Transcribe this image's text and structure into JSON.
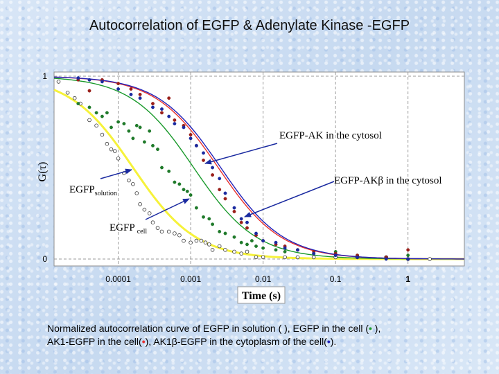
{
  "title": "Autocorrelation of EGFP & Adenylate Kinase -EGFP",
  "chart_data": {
    "type": "scatter",
    "title": "Autocorrelation of EGFP & Adenylate Kinase -EGFP",
    "xlabel": "Time (s)",
    "ylabel": "G(τ)",
    "x_scale": "log",
    "xlim": [
      1.3e-05,
      6
    ],
    "ylim": [
      0,
      1
    ],
    "x_ticks": [
      {
        "value": 0.0001,
        "label": "0.0001"
      },
      {
        "value": 0.001,
        "label": "0.001"
      },
      {
        "value": 0.01,
        "label": "0.01"
      },
      {
        "value": 0.1,
        "label": "0.1"
      },
      {
        "value": 1,
        "label": "1"
      }
    ],
    "y_ticks": [
      {
        "value": 0,
        "label": "0"
      },
      {
        "value": 1,
        "label": "1"
      }
    ],
    "grid": "vertical-dashed",
    "series": [
      {
        "name": "EGFP solution",
        "color": "#f6f23a",
        "marker_color": "#ffffff",
        "x": [
          1.5e-05,
          2e-05,
          2.5e-05,
          3e-05,
          4e-05,
          5e-05,
          6e-05,
          7e-05,
          8e-05,
          9e-05,
          0.0001,
          0.00012,
          0.00014,
          0.00016,
          0.00018,
          0.0002,
          0.00023,
          0.00027,
          0.0003,
          0.00035,
          0.0004,
          0.0005,
          0.0006,
          0.0007,
          0.0008,
          0.001,
          0.0012,
          0.0014,
          0.0016,
          0.0018,
          0.002,
          0.0025,
          0.003,
          0.004,
          0.005,
          0.006,
          0.008,
          0.01,
          0.02,
          0.03,
          0.05,
          0.1,
          0.2,
          0.5,
          1,
          2
        ],
        "y": [
          0.97,
          0.91,
          0.88,
          0.85,
          0.76,
          0.73,
          0.68,
          0.63,
          0.6,
          0.59,
          0.55,
          0.47,
          0.43,
          0.41,
          0.36,
          0.3,
          0.27,
          0.25,
          0.2,
          0.17,
          0.15,
          0.15,
          0.14,
          0.13,
          0.1,
          0.09,
          0.1,
          0.1,
          0.09,
          0.08,
          0.05,
          0.07,
          0.05,
          0.04,
          0.03,
          0.04,
          0.01,
          0.01,
          0.01,
          0.01,
          0.01,
          0.01,
          0.01,
          0.01,
          0.0,
          0.0
        ]
      },
      {
        "name": "EGFP cell",
        "color": "#1a9a2c",
        "marker_color": "#1f7a2a",
        "x": [
          2.8e-05,
          4e-05,
          5e-05,
          6e-05,
          7e-05,
          8e-05,
          0.0001,
          0.00012,
          0.00014,
          0.00016,
          0.00018,
          0.0002,
          0.00023,
          0.00027,
          0.0003,
          0.00035,
          0.0004,
          0.0005,
          0.0006,
          0.0007,
          0.0008,
          0.0009,
          0.001,
          0.0012,
          0.0015,
          0.0018,
          0.002,
          0.0025,
          0.003,
          0.004,
          0.005,
          0.006,
          0.007,
          0.008,
          0.01,
          0.015,
          0.02,
          0.03,
          0.05,
          0.1,
          0.2,
          0.5,
          1
        ],
        "y": [
          0.85,
          0.83,
          0.8,
          0.78,
          0.8,
          0.72,
          0.75,
          0.74,
          0.7,
          0.66,
          0.73,
          0.72,
          0.64,
          0.7,
          0.62,
          0.6,
          0.5,
          0.48,
          0.42,
          0.41,
          0.38,
          0.37,
          0.35,
          0.28,
          0.23,
          0.22,
          0.19,
          0.15,
          0.14,
          0.12,
          0.09,
          0.08,
          0.1,
          0.07,
          0.06,
          0.05,
          0.04,
          0.05,
          0.03,
          0.04,
          0.02,
          0.01,
          0.02
        ]
      },
      {
        "name": "AK1-EGFP cell",
        "color": "#e8302e",
        "marker_color": "#9a1f1a",
        "x": [
          2.8e-05,
          4e-05,
          6e-05,
          0.0001,
          0.00015,
          0.0002,
          0.0003,
          0.0004,
          0.0005,
          0.0006,
          0.0008,
          0.001,
          0.0012,
          0.0015,
          0.002,
          0.0025,
          0.003,
          0.004,
          0.005,
          0.006,
          0.008,
          0.01,
          0.015,
          0.02,
          0.03,
          0.05,
          0.1,
          0.2,
          0.5,
          1
        ],
        "y": [
          0.98,
          0.92,
          0.98,
          0.96,
          0.93,
          0.9,
          0.85,
          0.8,
          0.88,
          0.76,
          0.73,
          0.68,
          0.62,
          0.54,
          0.46,
          0.38,
          0.33,
          0.26,
          0.2,
          0.17,
          0.13,
          0.1,
          0.08,
          0.07,
          0.05,
          0.04,
          0.03,
          0.02,
          0.01,
          0.05
        ]
      },
      {
        "name": "AK1β-EGFP cytoplasm",
        "color": "#2222b8",
        "marker_color": "#1a2aa0",
        "x": [
          2.8e-05,
          4e-05,
          6e-05,
          0.0001,
          0.00015,
          0.0002,
          0.0003,
          0.0004,
          0.0005,
          0.0006,
          0.0008,
          0.001,
          0.0012,
          0.0015,
          0.002,
          0.0025,
          0.003,
          0.004,
          0.005,
          0.006,
          0.008,
          0.01,
          0.015,
          0.02,
          0.03,
          0.05,
          0.1,
          0.2,
          0.5,
          1
        ],
        "y": [
          0.99,
          0.98,
          0.97,
          0.93,
          0.9,
          0.88,
          0.83,
          0.82,
          0.78,
          0.74,
          0.72,
          0.66,
          0.62,
          0.58,
          0.5,
          0.44,
          0.36,
          0.28,
          0.22,
          0.2,
          0.14,
          0.1,
          0.09,
          0.06,
          0.05,
          0.03,
          0.02,
          0.01,
          0.0,
          0.0
        ]
      }
    ],
    "curves": [
      {
        "name": "EGFP solution",
        "color": "#f6f23a",
        "tau": 0.00016
      },
      {
        "name": "EGFP cell",
        "color": "#1a9a2c",
        "tau": 0.0011
      },
      {
        "name": "AK1-EGFP cell",
        "color": "#e8302e",
        "tau": 0.0024
      },
      {
        "name": "AK1β-EGFP cytoplasm",
        "color": "#2222b8",
        "tau": 0.0026
      }
    ],
    "annotations": [
      {
        "id": "ak",
        "text": "EGFP-AK in the cytosol"
      },
      {
        "id": "akb",
        "text_main": "EGFP-AK",
        "text_greek": "β",
        "text_rest": " in the cytosol"
      },
      {
        "id": "sol",
        "text_main": "EGFP",
        "text_sub": "solution"
      },
      {
        "id": "cell",
        "text_main": "EGFP",
        "text_sub": "cell"
      }
    ]
  },
  "caption": {
    "line1_a": "Normalized autocorrelation curve of EGFP in solution ( ), EGFP in the cell (",
    "line1_dot": "•",
    "line1_b": " ),",
    "line2_a": "AK1-EGFP in the cell(",
    "line2_dot1": "•",
    "line2_b": "), AK1",
    "line2_beta": "β",
    "line2_c": "-EGFP in the cytoplasm of the cell(",
    "line2_dot2": "•",
    "line2_d": ")."
  }
}
